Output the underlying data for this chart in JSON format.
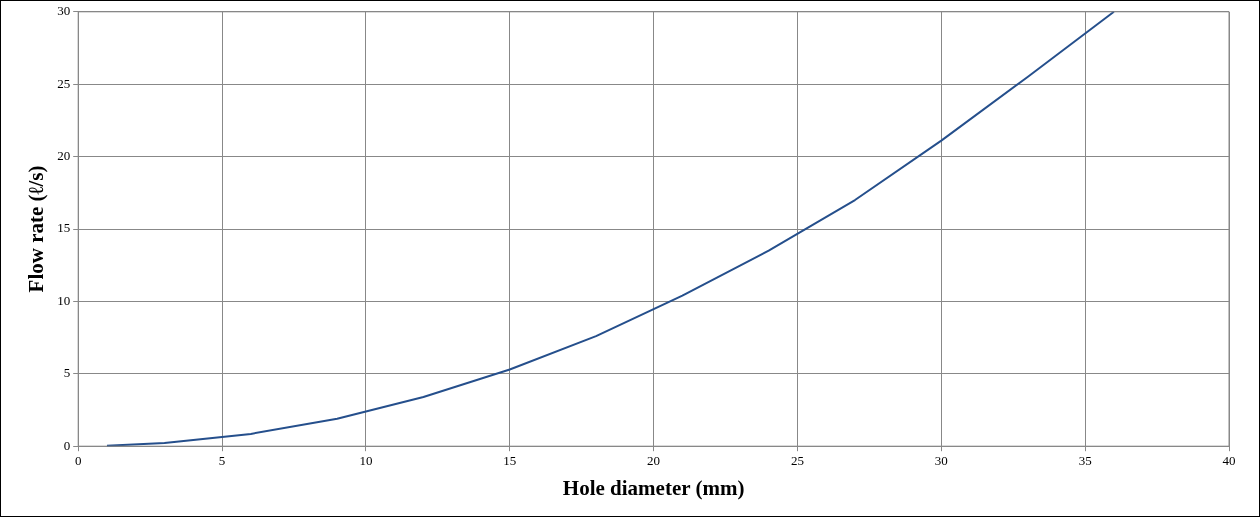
{
  "chart_data": {
    "type": "line",
    "xlabel": "Hole diameter (mm)",
    "ylabel": "Flow rate (ℓ/s)",
    "x": [
      1,
      3,
      6,
      9,
      12,
      15,
      18,
      21,
      24,
      27,
      30,
      33,
      36
    ],
    "series": [
      {
        "color": "#254f8c",
        "values": [
          0.03,
          0.22,
          0.85,
          1.9,
          3.4,
          5.3,
          7.6,
          10.4,
          13.5,
          17.0,
          21.1,
          25.5,
          30
        ]
      }
    ],
    "xlim": [
      0,
      40
    ],
    "xticks": [
      0,
      5,
      10,
      15,
      20,
      25,
      30,
      35,
      40
    ],
    "ylim": [
      0,
      30
    ],
    "yticks": [
      0,
      5,
      10,
      15,
      20,
      25,
      30
    ],
    "grid": true,
    "legend": false,
    "marker": "none",
    "line_style": "solid"
  }
}
